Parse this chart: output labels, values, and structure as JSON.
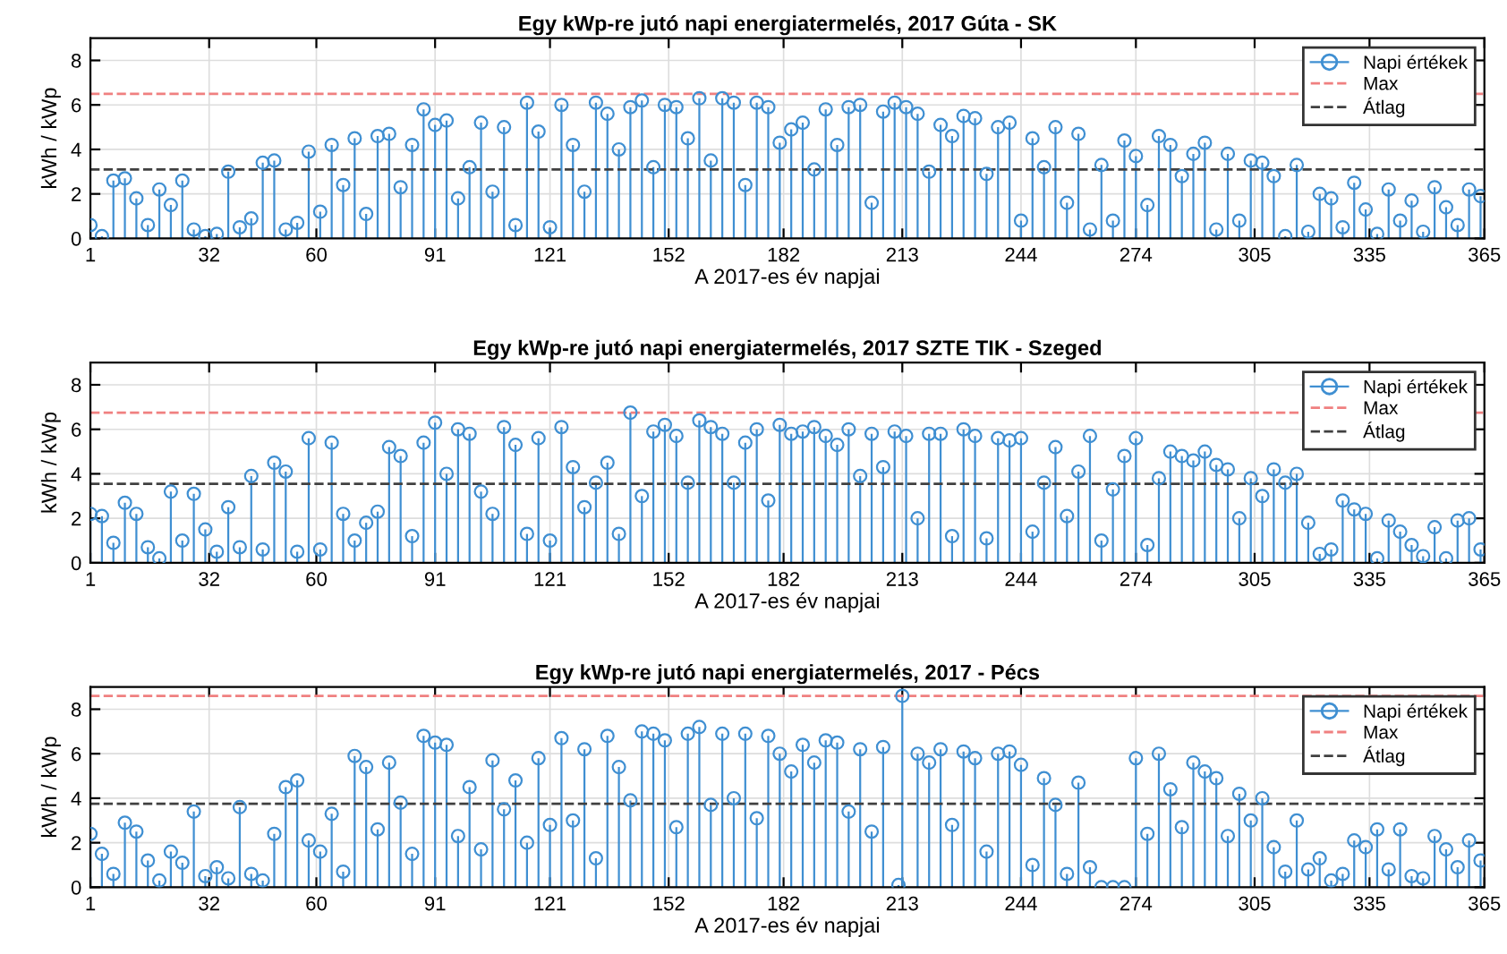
{
  "chart_data": [
    {
      "type": "lollipop",
      "title": "Egy kWp-re jutó napi energiatermelés, 2017 Gúta - SK",
      "xlabel": "A 2017-es év napjai",
      "ylabel": "kWh / kWp",
      "x": [
        1,
        4,
        7,
        10,
        13,
        16,
        19,
        22,
        25,
        28,
        31,
        34,
        37,
        40,
        43,
        46,
        49,
        52,
        55,
        58,
        61,
        64,
        67,
        70,
        73,
        76,
        79,
        82,
        85,
        88,
        91,
        94,
        97,
        100,
        103,
        106,
        109,
        112,
        115,
        118,
        121,
        124,
        127,
        130,
        133,
        136,
        139,
        142,
        145,
        148,
        151,
        154,
        157,
        160,
        163,
        166,
        169,
        172,
        175,
        178,
        181,
        184,
        187,
        190,
        193,
        196,
        199,
        202,
        205,
        208,
        211,
        214,
        217,
        220,
        223,
        226,
        229,
        232,
        235,
        238,
        241,
        244,
        247,
        250,
        253,
        256,
        259,
        262,
        265,
        268,
        271,
        274,
        277,
        280,
        283,
        286,
        289,
        292,
        295,
        298,
        301,
        304,
        307,
        310,
        313,
        316,
        319,
        322,
        325,
        328,
        331,
        334,
        337,
        340,
        343,
        346,
        349,
        352,
        355,
        358,
        361,
        364
      ],
      "series": [
        {
          "name": "Napi értékek",
          "color": "#3f8fd2",
          "values": [
            0.6,
            0.1,
            2.6,
            2.7,
            1.8,
            0.6,
            2.2,
            1.5,
            2.6,
            0.4,
            0.1,
            0.2,
            3.0,
            0.5,
            0.9,
            3.4,
            3.5,
            0.4,
            0.7,
            3.9,
            1.2,
            4.2,
            2.4,
            4.5,
            1.1,
            4.6,
            4.7,
            2.3,
            4.2,
            5.8,
            5.1,
            5.3,
            1.8,
            3.2,
            5.2,
            2.1,
            5.0,
            0.6,
            6.1,
            4.8,
            0.5,
            6.0,
            4.2,
            2.1,
            6.1,
            5.6,
            4.0,
            5.9,
            6.2,
            3.2,
            6.0,
            5.9,
            4.5,
            6.3,
            3.5,
            6.3,
            6.1,
            2.4,
            6.1,
            5.9,
            4.3,
            4.9,
            5.2,
            3.1,
            5.8,
            4.2,
            5.9,
            6.0,
            1.6,
            5.7,
            6.1,
            5.9,
            5.6,
            3.0,
            5.1,
            4.6,
            5.5,
            5.4,
            2.9,
            5.0,
            5.2,
            0.8,
            4.5,
            3.2,
            5.0,
            1.6,
            4.7,
            0.4,
            3.3,
            0.8,
            4.4,
            3.7,
            1.5,
            4.6,
            4.2,
            2.8,
            3.8,
            4.3,
            0.4,
            3.8,
            0.8,
            3.5,
            3.4,
            2.8,
            0.1,
            3.3,
            0.3,
            2.0,
            1.8,
            0.5,
            2.5,
            1.3,
            0.2,
            2.2,
            0.8,
            1.7,
            0.3,
            2.3,
            1.4,
            0.6,
            2.2,
            1.9
          ]
        }
      ],
      "ref_lines": [
        {
          "axis": "y",
          "value": 6.5,
          "label": "Max",
          "color": "#f08080",
          "line_style": "dashed"
        },
        {
          "axis": "y",
          "value": 3.1,
          "label": "Átlag",
          "color": "#404040",
          "line_style": "dashed"
        }
      ],
      "xlim": [
        1,
        365
      ],
      "xticks": [
        1,
        32,
        60,
        91,
        121,
        152,
        182,
        213,
        244,
        274,
        305,
        335,
        365
      ],
      "ylim": [
        0,
        9
      ],
      "yticks": [
        0,
        2,
        4,
        6,
        8
      ],
      "grid": true,
      "legend": "top right",
      "marker": "circle"
    },
    {
      "type": "lollipop",
      "title": "Egy kWp-re jutó napi energiatermelés, 2017 SZTE TIK - Szeged",
      "xlabel": "A 2017-es év napjai",
      "ylabel": "kWh / kWp",
      "x": [
        1,
        4,
        7,
        10,
        13,
        16,
        19,
        22,
        25,
        28,
        31,
        34,
        37,
        40,
        43,
        46,
        49,
        52,
        55,
        58,
        61,
        64,
        67,
        70,
        73,
        76,
        79,
        82,
        85,
        88,
        91,
        94,
        97,
        100,
        103,
        106,
        109,
        112,
        115,
        118,
        121,
        124,
        127,
        130,
        133,
        136,
        139,
        142,
        145,
        148,
        151,
        154,
        157,
        160,
        163,
        166,
        169,
        172,
        175,
        178,
        181,
        184,
        187,
        190,
        193,
        196,
        199,
        202,
        205,
        208,
        211,
        214,
        217,
        220,
        223,
        226,
        229,
        232,
        235,
        238,
        241,
        244,
        247,
        250,
        253,
        256,
        259,
        262,
        265,
        268,
        271,
        274,
        277,
        280,
        283,
        286,
        289,
        292,
        295,
        298,
        301,
        304,
        307,
        310,
        313,
        316,
        319,
        322,
        325,
        328,
        331,
        334,
        337,
        340,
        343,
        346,
        349,
        352,
        355,
        358,
        361,
        364
      ],
      "series": [
        {
          "name": "Napi értékek",
          "color": "#3f8fd2",
          "values": [
            2.2,
            2.1,
            0.9,
            2.7,
            2.2,
            0.7,
            0.2,
            3.2,
            1.0,
            3.1,
            1.5,
            0.5,
            2.5,
            0.7,
            3.9,
            0.6,
            4.5,
            4.1,
            0.5,
            5.6,
            0.6,
            5.4,
            2.2,
            1.0,
            1.8,
            2.3,
            5.2,
            4.8,
            1.2,
            5.4,
            6.3,
            4.0,
            6.0,
            5.8,
            3.2,
            2.2,
            6.1,
            5.3,
            1.3,
            5.6,
            1.0,
            6.1,
            4.3,
            2.5,
            3.6,
            4.5,
            1.3,
            6.75,
            3.0,
            5.9,
            6.2,
            5.7,
            3.6,
            6.4,
            6.1,
            5.8,
            3.6,
            5.4,
            6.0,
            2.8,
            6.2,
            5.8,
            5.9,
            6.1,
            5.7,
            5.3,
            6.0,
            3.9,
            5.8,
            4.3,
            5.9,
            5.7,
            2.0,
            5.8,
            5.8,
            1.2,
            6.0,
            5.7,
            1.1,
            5.6,
            5.5,
            5.6,
            1.4,
            3.6,
            5.2,
            2.1,
            4.1,
            5.7,
            1.0,
            3.3,
            4.8,
            5.6,
            0.8,
            3.8,
            5.0,
            4.8,
            4.6,
            5.0,
            4.4,
            4.2,
            2.0,
            3.8,
            3.0,
            4.2,
            3.6,
            4.0,
            1.8,
            0.4,
            0.6,
            2.8,
            2.4,
            2.2,
            0.2,
            1.9,
            1.4,
            0.8,
            0.3,
            1.6,
            0.2,
            1.9,
            2.0,
            0.6
          ]
        }
      ],
      "ref_lines": [
        {
          "axis": "y",
          "value": 6.75,
          "label": "Max",
          "color": "#f08080",
          "line_style": "dashed"
        },
        {
          "axis": "y",
          "value": 3.55,
          "label": "Átlag",
          "color": "#404040",
          "line_style": "dashed"
        }
      ],
      "xlim": [
        1,
        365
      ],
      "xticks": [
        1,
        32,
        60,
        91,
        121,
        152,
        182,
        213,
        244,
        274,
        305,
        335,
        365
      ],
      "ylim": [
        0,
        9
      ],
      "yticks": [
        0,
        2,
        4,
        6,
        8
      ],
      "grid": true,
      "legend": "top right",
      "marker": "circle"
    },
    {
      "type": "lollipop",
      "title": "Egy kWp-re jutó napi energiatermelés, 2017 - Pécs",
      "xlabel": "A 2017-es év napjai",
      "ylabel": "kWh / kWp",
      "x": [
        1,
        4,
        7,
        10,
        13,
        16,
        19,
        22,
        25,
        28,
        31,
        34,
        37,
        40,
        43,
        46,
        49,
        52,
        55,
        58,
        61,
        64,
        67,
        70,
        73,
        76,
        79,
        82,
        85,
        88,
        91,
        94,
        97,
        100,
        103,
        106,
        109,
        112,
        115,
        118,
        121,
        124,
        127,
        130,
        133,
        136,
        139,
        142,
        145,
        148,
        151,
        154,
        157,
        160,
        163,
        166,
        169,
        172,
        175,
        178,
        181,
        184,
        187,
        190,
        193,
        196,
        199,
        202,
        205,
        208,
        212,
        213,
        217,
        220,
        223,
        226,
        229,
        232,
        235,
        238,
        241,
        244,
        247,
        250,
        253,
        256,
        259,
        262,
        265,
        268,
        271,
        274,
        277,
        280,
        283,
        286,
        289,
        292,
        295,
        298,
        301,
        304,
        307,
        310,
        313,
        316,
        319,
        322,
        325,
        328,
        331,
        334,
        337,
        340,
        343,
        346,
        349,
        352,
        355,
        358,
        361,
        364
      ],
      "series": [
        {
          "name": "Napi értékek",
          "color": "#3f8fd2",
          "values": [
            2.4,
            1.5,
            0.6,
            2.9,
            2.5,
            1.2,
            0.3,
            1.6,
            1.1,
            3.4,
            0.5,
            0.9,
            0.4,
            3.6,
            0.6,
            0.3,
            2.4,
            4.5,
            4.8,
            2.1,
            1.6,
            3.3,
            0.7,
            5.9,
            5.4,
            2.6,
            5.6,
            3.8,
            1.5,
            6.8,
            6.5,
            6.4,
            2.3,
            4.5,
            1.7,
            5.7,
            3.5,
            4.8,
            2.0,
            5.8,
            2.8,
            6.7,
            3.0,
            6.2,
            1.3,
            6.8,
            5.4,
            3.9,
            7.0,
            6.9,
            6.6,
            2.7,
            6.9,
            7.2,
            3.7,
            6.9,
            4.0,
            6.9,
            3.1,
            6.8,
            6.0,
            5.2,
            6.4,
            5.6,
            6.6,
            6.5,
            3.4,
            6.2,
            2.5,
            6.3,
            0.1,
            8.6,
            6.0,
            5.6,
            6.2,
            2.8,
            6.1,
            5.8,
            1.6,
            6.0,
            6.1,
            5.5,
            1.0,
            4.9,
            3.7,
            0.6,
            4.7,
            0.9,
            0.0,
            0.0,
            0.0,
            5.8,
            2.4,
            6.0,
            4.4,
            2.7,
            5.6,
            5.2,
            4.9,
            2.3,
            4.2,
            3.0,
            4.0,
            1.8,
            0.7,
            3.0,
            0.8,
            1.3,
            0.3,
            0.6,
            2.1,
            1.8,
            2.6,
            0.8,
            2.6,
            0.5,
            0.4,
            2.3,
            1.7,
            0.9,
            2.1,
            1.2
          ]
        }
      ],
      "ref_lines": [
        {
          "axis": "y",
          "value": 8.6,
          "label": "Max",
          "color": "#f08080",
          "line_style": "dashed"
        },
        {
          "axis": "y",
          "value": 3.75,
          "label": "Átlag",
          "color": "#404040",
          "line_style": "dashed"
        }
      ],
      "xlim": [
        1,
        365
      ],
      "xticks": [
        1,
        32,
        60,
        91,
        121,
        152,
        182,
        213,
        244,
        274,
        305,
        335,
        365
      ],
      "ylim": [
        0,
        9
      ],
      "yticks": [
        0,
        2,
        4,
        6,
        8
      ],
      "grid": true,
      "legend": "top right",
      "marker": "circle"
    }
  ]
}
